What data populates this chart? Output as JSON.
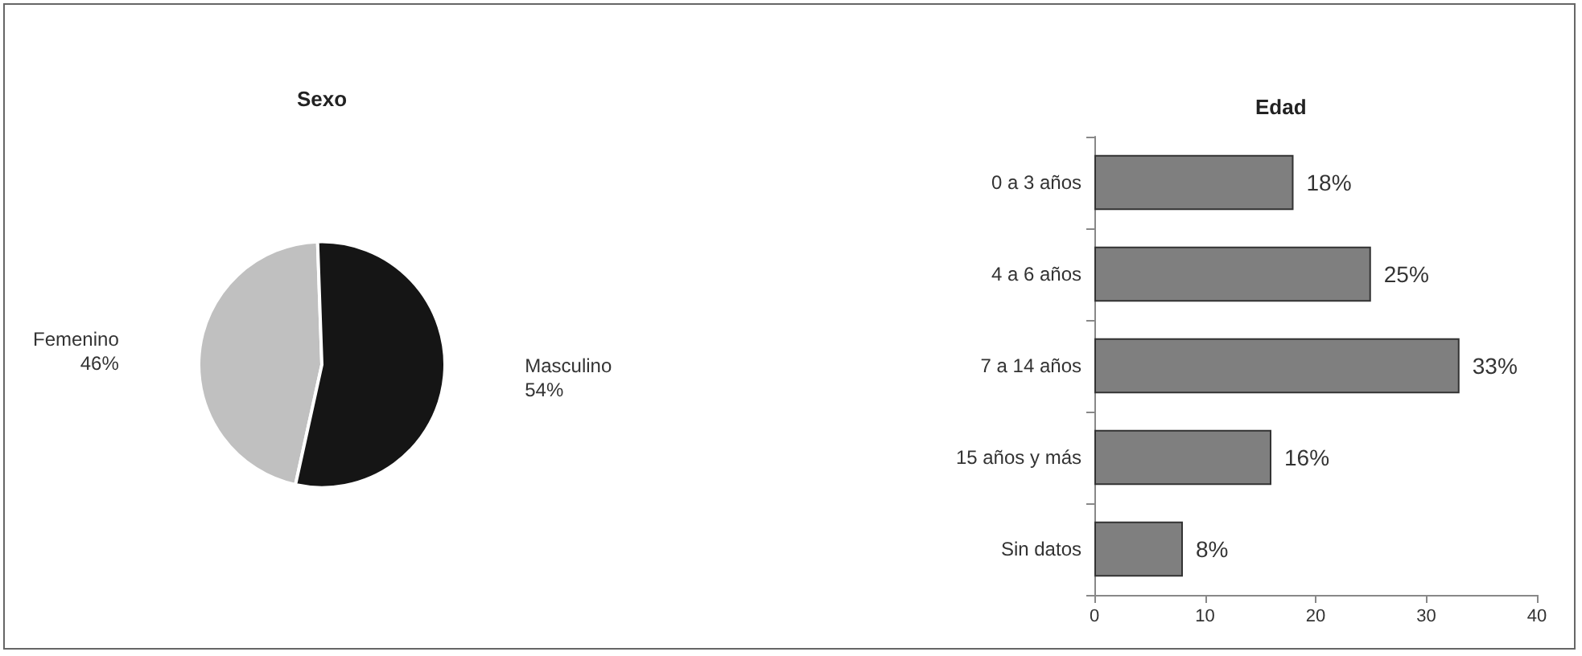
{
  "chart_data": [
    {
      "type": "pie",
      "title": "Sexo",
      "categories": [
        "Femenino",
        "Masculino"
      ],
      "values": [
        46,
        54
      ],
      "colors": [
        "#c0c0c0",
        "#151515"
      ],
      "value_labels": [
        "46%",
        "54%"
      ]
    },
    {
      "type": "bar",
      "title": "Edad",
      "orientation": "horizontal",
      "categories": [
        "0 a 3 años",
        "4 a 6 años",
        "7 a 14 años",
        "15 años y más",
        "Sin datos"
      ],
      "values": [
        18,
        25,
        33,
        16,
        8
      ],
      "color": "#7f7f7f",
      "value_labels": [
        "18%",
        "25%",
        "33%",
        "16%",
        "8%"
      ],
      "xlim": [
        0,
        40
      ],
      "xticks": [
        0,
        10,
        20,
        30,
        40
      ],
      "grid": false
    }
  ]
}
